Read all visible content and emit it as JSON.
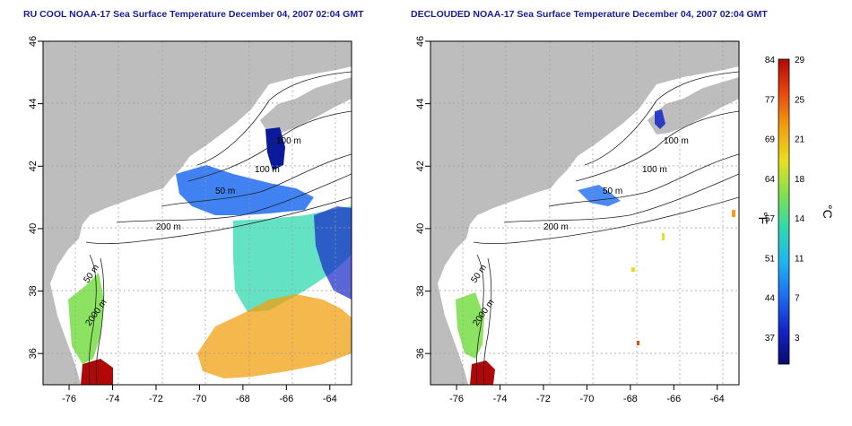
{
  "panels": [
    {
      "title": "RU COOL NOAA-17 Sea Surface Temperature December 04, 2007 02:04 GMT",
      "contours": [
        "100 m",
        "100 m",
        "50 m",
        "200 m",
        "50 m",
        "2000 m"
      ]
    },
    {
      "title": "DECLOUDED NOAA-17 Sea Surface Temperature December 04, 2007 02:04 GMT",
      "contours": [
        "100 m",
        "100 m",
        "50 m",
        "200 m",
        "50 m",
        "2000 m"
      ]
    }
  ],
  "axes": {
    "x_ticks": [
      "-76",
      "-74",
      "-72",
      "-70",
      "-68",
      "-66",
      "-64"
    ],
    "y_ticks": [
      "36",
      "38",
      "40",
      "42",
      "44",
      "46"
    ],
    "x_values": [
      -76,
      -74,
      -72,
      -70,
      -68,
      -66,
      -64
    ],
    "y_values": [
      36,
      38,
      40,
      42,
      44,
      46
    ],
    "xlim": [
      -77.2,
      -63
    ],
    "ylim": [
      35,
      46
    ],
    "grid": true
  },
  "colorbar": {
    "fahrenheit_ticks": [
      "84",
      "77",
      "69",
      "64",
      "57",
      "51",
      "44",
      "37"
    ],
    "celsius_ticks": [
      "29",
      "25",
      "21",
      "18",
      "14",
      "11",
      "7",
      "3"
    ],
    "fahrenheit_label": "°F",
    "celsius_label": "°C",
    "colors": [
      "#080a6e",
      "#1424c8",
      "#1e6cf0",
      "#20b4f0",
      "#30d8b0",
      "#80e050",
      "#e8e020",
      "#f0a010",
      "#e84810",
      "#b00808"
    ]
  },
  "colors": {
    "land": "#bdbdbd",
    "ocean": "#ffffff",
    "title": "#1b1b9a"
  }
}
